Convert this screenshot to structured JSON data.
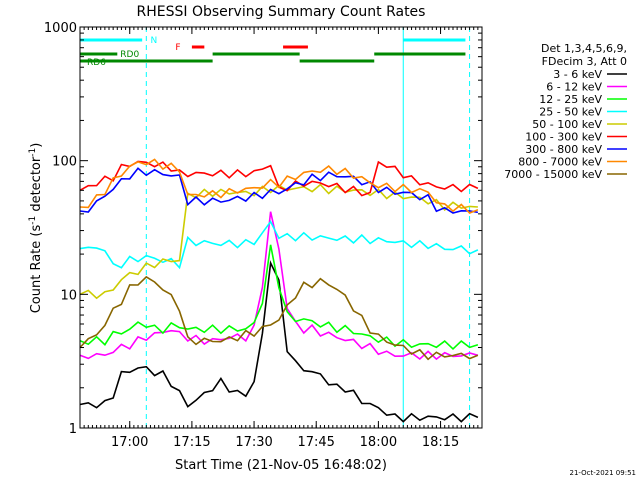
{
  "chart_data": {
    "type": "line",
    "title": "RHESSI Observing Summary Count Rates",
    "xlabel": "Start Time (21-Nov-05 16:48:02)",
    "ylabel_main": "Count Rate (s",
    "ylabel_sup1": "-1",
    "ylabel_mid": " detector",
    "ylabel_sup2": "-1",
    "ylabel_end": ")",
    "yscale": "log",
    "ylim": [
      1,
      1000
    ],
    "xlim_minutes_after_1648": [
      0,
      97
    ],
    "x_ticks": [
      {
        "label": "17:00",
        "minutes": 12
      },
      {
        "label": "17:15",
        "minutes": 27
      },
      {
        "label": "17:30",
        "minutes": 42
      },
      {
        "label": "17:45",
        "minutes": 57
      },
      {
        "label": "18:00",
        "minutes": 72
      },
      {
        "label": "18:15",
        "minutes": 87
      }
    ],
    "y_ticks": [
      {
        "label": "1",
        "value": 1
      },
      {
        "label": "10",
        "value": 10
      },
      {
        "label": "100",
        "value": 100
      },
      {
        "label": "1000",
        "value": 1000
      }
    ],
    "legend_header": [
      "Det 1,3,4,5,6,9,",
      "FDecim 3, Att 0"
    ],
    "footer_date": "21-Oct-2021 09:51",
    "series": [
      {
        "name": "3 - 6 keV",
        "color": "#000000",
        "x": [
          0,
          2,
          4,
          6,
          8,
          10,
          12,
          14,
          16,
          18,
          20,
          22,
          24,
          26,
          28,
          30,
          32,
          34,
          36,
          38,
          40,
          42,
          44,
          46,
          48,
          50,
          52,
          54,
          56,
          58,
          60,
          62,
          64,
          66,
          68,
          70,
          72,
          74,
          76,
          78,
          80,
          82,
          84,
          86,
          88,
          90,
          92,
          94,
          96
        ],
        "values": [
          1.5,
          1.5,
          1.5,
          1.5,
          1.8,
          2.5,
          2.7,
          2.8,
          2.8,
          2.6,
          2.5,
          2.2,
          1.8,
          1.5,
          1.6,
          1.8,
          2.0,
          2.2,
          2.0,
          1.8,
          1.8,
          2.2,
          5.0,
          18,
          12,
          4.0,
          3.0,
          2.8,
          2.6,
          2.5,
          2.2,
          2.0,
          2.0,
          1.8,
          1.6,
          1.5,
          1.4,
          1.3,
          1.2,
          1.2,
          1.2,
          1.2,
          1.2,
          1.2,
          1.2,
          1.2,
          1.2,
          1.2,
          1.2
        ]
      },
      {
        "name": "6 - 12 keV",
        "color": "#ff00ff",
        "x": [
          0,
          2,
          4,
          6,
          8,
          10,
          12,
          14,
          16,
          18,
          20,
          22,
          24,
          26,
          28,
          30,
          32,
          34,
          36,
          38,
          40,
          42,
          44,
          46,
          48,
          50,
          52,
          54,
          56,
          58,
          60,
          62,
          64,
          66,
          68,
          70,
          72,
          74,
          76,
          78,
          80,
          82,
          84,
          86,
          88,
          90,
          92,
          94,
          96
        ],
        "values": [
          3.5,
          3.5,
          3.5,
          3.5,
          3.8,
          4.0,
          4.2,
          4.5,
          4.8,
          5.0,
          5.2,
          5.5,
          5.0,
          4.8,
          4.6,
          4.5,
          4.5,
          4.6,
          4.8,
          4.8,
          4.8,
          5.5,
          12,
          40,
          22,
          8.0,
          6.0,
          5.5,
          5.5,
          5.2,
          5.0,
          4.8,
          4.6,
          4.4,
          4.2,
          4.0,
          3.8,
          3.6,
          3.5,
          3.5,
          3.5,
          3.5,
          3.5,
          3.5,
          3.5,
          3.5,
          3.5,
          3.5,
          3.5
        ]
      },
      {
        "name": "12 - 25 keV",
        "color": "#00ff00",
        "x": [
          0,
          2,
          4,
          6,
          8,
          10,
          12,
          14,
          16,
          18,
          20,
          22,
          24,
          26,
          28,
          30,
          32,
          34,
          36,
          38,
          40,
          42,
          44,
          46,
          48,
          50,
          52,
          54,
          56,
          58,
          60,
          62,
          64,
          66,
          68,
          70,
          72,
          74,
          76,
          78,
          80,
          82,
          84,
          86,
          88,
          90,
          92,
          94,
          96
        ],
        "values": [
          4.5,
          4.5,
          4.5,
          4.5,
          5.0,
          5.2,
          5.5,
          6.0,
          6.0,
          5.5,
          5.5,
          5.8,
          5.8,
          5.5,
          5.5,
          5.5,
          5.5,
          5.5,
          5.5,
          5.5,
          5.5,
          6.0,
          9.0,
          22,
          12,
          7.0,
          6.5,
          6.5,
          6.2,
          6.0,
          5.8,
          5.6,
          5.5,
          5.3,
          5.0,
          4.8,
          4.6,
          4.5,
          4.4,
          4.3,
          4.2,
          4.2,
          4.2,
          4.2,
          4.2,
          4.2,
          4.2,
          4.2,
          4.2
        ]
      },
      {
        "name": "25 - 50 keV",
        "color": "#00ffff",
        "x": [
          0,
          2,
          4,
          6,
          8,
          10,
          12,
          14,
          16,
          18,
          20,
          22,
          24,
          26,
          28,
          30,
          32,
          34,
          36,
          38,
          40,
          42,
          44,
          46,
          48,
          50,
          52,
          54,
          56,
          58,
          60,
          62,
          64,
          66,
          68,
          70,
          72,
          74,
          76,
          78,
          80,
          82,
          84,
          86,
          88,
          90,
          92,
          94,
          96
        ],
        "values": [
          22,
          22,
          22,
          22,
          16,
          17,
          18,
          18.5,
          19,
          18.5,
          18,
          17.5,
          17,
          25,
          24.5,
          24.5,
          24,
          24,
          24,
          24,
          24,
          25,
          28,
          35,
          27,
          27,
          27,
          27,
          27,
          26.5,
          26.5,
          26,
          26,
          26,
          26,
          25.5,
          25.5,
          25,
          25,
          24,
          24,
          23.5,
          23.5,
          23,
          22,
          22,
          22,
          21.5,
          21.5
        ]
      },
      {
        "name": "50 - 100 keV",
        "color": "#cccc00",
        "x": [
          0,
          2,
          4,
          6,
          8,
          10,
          12,
          14,
          16,
          18,
          20,
          22,
          24,
          26,
          28,
          30,
          32,
          34,
          36,
          38,
          40,
          42,
          44,
          46,
          48,
          50,
          52,
          54,
          56,
          58,
          60,
          62,
          64,
          66,
          68,
          70,
          72,
          74,
          76,
          78,
          80,
          82,
          84,
          86,
          88,
          90,
          92,
          94,
          96
        ],
        "values": [
          10,
          10,
          10,
          10,
          11,
          13,
          14,
          15,
          16,
          17,
          17.5,
          18,
          18,
          55,
          56,
          57,
          58,
          58,
          58,
          58,
          57,
          58,
          60,
          62,
          62,
          62,
          62,
          62,
          62,
          62,
          61,
          61,
          60,
          60,
          59,
          58,
          57,
          56,
          55,
          54,
          53,
          52,
          50,
          48,
          46,
          46,
          46,
          45,
          45
        ]
      },
      {
        "name": "100 - 300 keV",
        "color": "#ff0000",
        "x": [
          0,
          2,
          4,
          6,
          8,
          10,
          12,
          14,
          16,
          18,
          20,
          22,
          24,
          26,
          28,
          30,
          32,
          34,
          36,
          38,
          40,
          42,
          44,
          46,
          48,
          50,
          52,
          54,
          56,
          58,
          60,
          62,
          64,
          66,
          68,
          70,
          72,
          74,
          76,
          78,
          80,
          82,
          84,
          86,
          88,
          90,
          92,
          94,
          96
        ],
        "values": [
          60,
          64,
          68,
          72,
          76,
          88,
          95,
          97,
          96,
          94,
          92,
          90,
          80,
          80,
          80,
          80,
          80,
          80,
          80,
          80,
          80,
          82,
          86,
          95,
          60,
          64,
          66,
          68,
          68,
          68,
          66,
          64,
          62,
          60,
          58,
          56,
          98,
          92,
          86,
          80,
          72,
          70,
          66,
          64,
          63,
          63,
          63,
          62,
          62
        ]
      },
      {
        "name": "300 - 800 keV",
        "color": "#0000ff",
        "x": [
          0,
          2,
          4,
          6,
          8,
          10,
          12,
          14,
          16,
          18,
          20,
          22,
          24,
          26,
          28,
          30,
          32,
          34,
          36,
          38,
          40,
          42,
          44,
          46,
          48,
          50,
          52,
          54,
          56,
          58,
          60,
          62,
          64,
          66,
          68,
          70,
          72,
          74,
          76,
          78,
          80,
          82,
          84,
          86,
          88,
          90,
          92,
          94,
          96
        ],
        "values": [
          42,
          44,
          48,
          55,
          62,
          70,
          78,
          82,
          83,
          82,
          80,
          78,
          75,
          50,
          50,
          50,
          50,
          50,
          51,
          52,
          53,
          54,
          56,
          58,
          58,
          62,
          66,
          70,
          74,
          76,
          78,
          78,
          76,
          74,
          70,
          65,
          62,
          60,
          58,
          58,
          56,
          54,
          52,
          45,
          42,
          42,
          42,
          41,
          41
        ]
      },
      {
        "name": "800 - 7000 keV",
        "color": "#ff8800",
        "x": [
          0,
          2,
          4,
          6,
          8,
          10,
          12,
          14,
          16,
          18,
          20,
          22,
          24,
          26,
          28,
          30,
          32,
          34,
          36,
          38,
          40,
          42,
          44,
          46,
          48,
          50,
          52,
          54,
          56,
          58,
          60,
          62,
          64,
          66,
          68,
          70,
          72,
          74,
          76,
          78,
          80,
          82,
          84,
          86,
          88,
          90,
          92,
          94,
          96
        ],
        "values": [
          45,
          47,
          52,
          60,
          70,
          80,
          90,
          96,
          98,
          96,
          93,
          90,
          86,
          55,
          55,
          56,
          56,
          57,
          58,
          60,
          61,
          62,
          65,
          68,
          68,
          72,
          76,
          80,
          83,
          85,
          86,
          85,
          82,
          78,
          74,
          68,
          65,
          64,
          63,
          62,
          61,
          60,
          58,
          50,
          45,
          45,
          44,
          43,
          43
        ]
      },
      {
        "name": "7000 - 15000 keV",
        "color": "#886600",
        "x": [
          0,
          2,
          4,
          6,
          8,
          10,
          12,
          14,
          16,
          18,
          20,
          22,
          24,
          26,
          28,
          30,
          32,
          34,
          36,
          38,
          40,
          42,
          44,
          46,
          48,
          50,
          52,
          54,
          56,
          58,
          60,
          62,
          64,
          66,
          68,
          70,
          72,
          74,
          76,
          78,
          80,
          82,
          84,
          86,
          88,
          90,
          92,
          94,
          96
        ],
        "values": [
          4.0,
          4.5,
          5.0,
          6.0,
          7.5,
          9.0,
          11,
          12.5,
          13,
          12.5,
          11,
          9.5,
          8.0,
          4.5,
          4.5,
          4.5,
          4.5,
          4.5,
          4.6,
          4.8,
          5.0,
          5.2,
          5.5,
          6.0,
          6.5,
          8.0,
          10,
          11.5,
          12,
          12.5,
          12,
          11,
          9.5,
          8.0,
          6.5,
          5.5,
          4.8,
          4.5,
          4.2,
          4.0,
          3.8,
          3.6,
          3.5,
          3.5,
          3.5,
          3.5,
          3.5,
          3.5,
          3.5
        ]
      }
    ],
    "flags": [
      {
        "label": "N",
        "color": "#00ffff",
        "level": 0,
        "segments": [
          [
            0,
            15
          ],
          [
            78,
            93
          ]
        ]
      },
      {
        "label": "F",
        "color": "#ff0000",
        "level": 1,
        "segments": [
          [
            27,
            30
          ],
          [
            49,
            55
          ]
        ]
      },
      {
        "label": "RD0",
        "color": "#008800",
        "level": 2,
        "segments": [
          [
            0,
            9
          ],
          [
            32,
            53
          ],
          [
            71,
            93
          ]
        ]
      },
      {
        "label": "RD6",
        "color": "#008800",
        "level": 3,
        "segments": [
          [
            0,
            32
          ],
          [
            53,
            71
          ]
        ]
      }
    ],
    "eclipse_marks": [
      {
        "minutes": 0,
        "style": "solid"
      },
      {
        "minutes": 16,
        "style": "dashed"
      },
      {
        "minutes": 78,
        "style": "solid"
      },
      {
        "minutes": 94,
        "style": "dashed"
      }
    ]
  }
}
